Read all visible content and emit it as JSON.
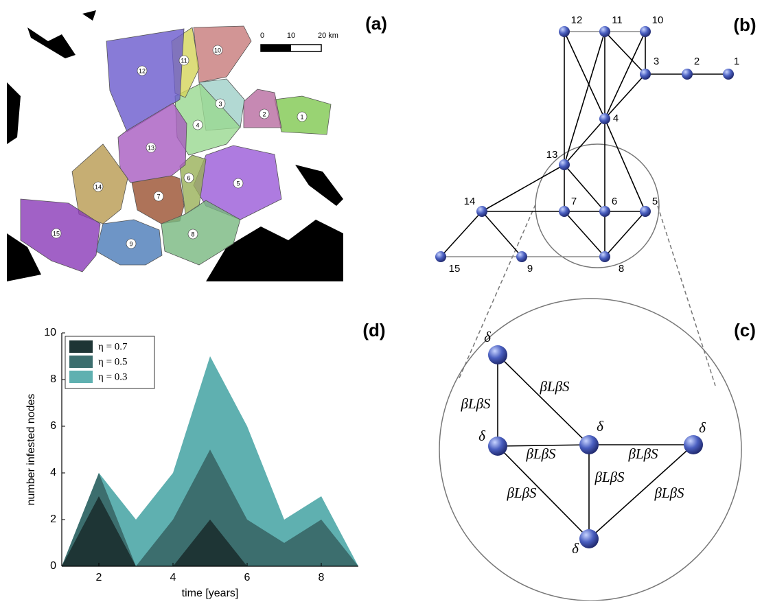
{
  "panel_labels": {
    "a": "(a)",
    "b": "(b)",
    "c": "(c)",
    "d": "(d)"
  },
  "map": {
    "scale_labels": [
      "0",
      "10",
      "20 km"
    ],
    "regions": [
      {
        "label": "1",
        "color": "#7fc850"
      },
      {
        "label": "2",
        "color": "#b86ca0"
      },
      {
        "label": "3",
        "color": "#9fd0c8"
      },
      {
        "label": "4",
        "color": "#98d890"
      },
      {
        "label": "5",
        "color": "#9a5ad8"
      },
      {
        "label": "6",
        "color": "#98b058"
      },
      {
        "label": "7",
        "color": "#9a5030"
      },
      {
        "label": "8",
        "color": "#78b880"
      },
      {
        "label": "9",
        "color": "#4a7ab8"
      },
      {
        "label": "10",
        "color": "#c77a7a"
      },
      {
        "label": "11",
        "color": "#d4d45a"
      },
      {
        "label": "12",
        "color": "#6a5acd"
      },
      {
        "label": "13",
        "color": "#a85bc0"
      },
      {
        "label": "14",
        "color": "#b89a50"
      },
      {
        "label": "15",
        "color": "#8a3ab8"
      }
    ]
  },
  "network": {
    "node_labels": [
      "1",
      "2",
      "3",
      "4",
      "5",
      "6",
      "7",
      "8",
      "9",
      "10",
      "11",
      "12",
      "13",
      "14",
      "15"
    ]
  },
  "zoom": {
    "node_labels": [
      "δ",
      "δ",
      "δ",
      "δ",
      "δ"
    ],
    "edge_labels": [
      "βLβS",
      "βLβS",
      "βLβS",
      "βLβS",
      "βLβS",
      "βLβS",
      "βLβS"
    ]
  },
  "chart_data": {
    "type": "area",
    "x_label": "time [years]",
    "y_label": "number infested nodes",
    "x": [
      1,
      2,
      3,
      4,
      5,
      6,
      7,
      8,
      9
    ],
    "series": [
      {
        "name": "η = 0.7",
        "color": "#1e3535",
        "values": [
          0,
          3,
          0,
          0,
          2,
          0,
          0,
          0,
          0
        ]
      },
      {
        "name": "η = 0.5",
        "color": "#3c6e6e",
        "values": [
          0,
          4,
          0,
          2,
          5,
          2,
          1,
          2,
          0
        ]
      },
      {
        "name": "η = 0.3",
        "color": "#5fb0b0",
        "values": [
          0,
          4,
          2,
          4,
          9,
          6,
          2,
          3,
          0
        ]
      }
    ],
    "xlim": [
      1,
      9
    ],
    "xticks": [
      2,
      4,
      6,
      8
    ],
    "ylim": [
      0,
      10
    ],
    "yticks": [
      0,
      2,
      4,
      6,
      8,
      10
    ],
    "legend": "upper-left"
  }
}
